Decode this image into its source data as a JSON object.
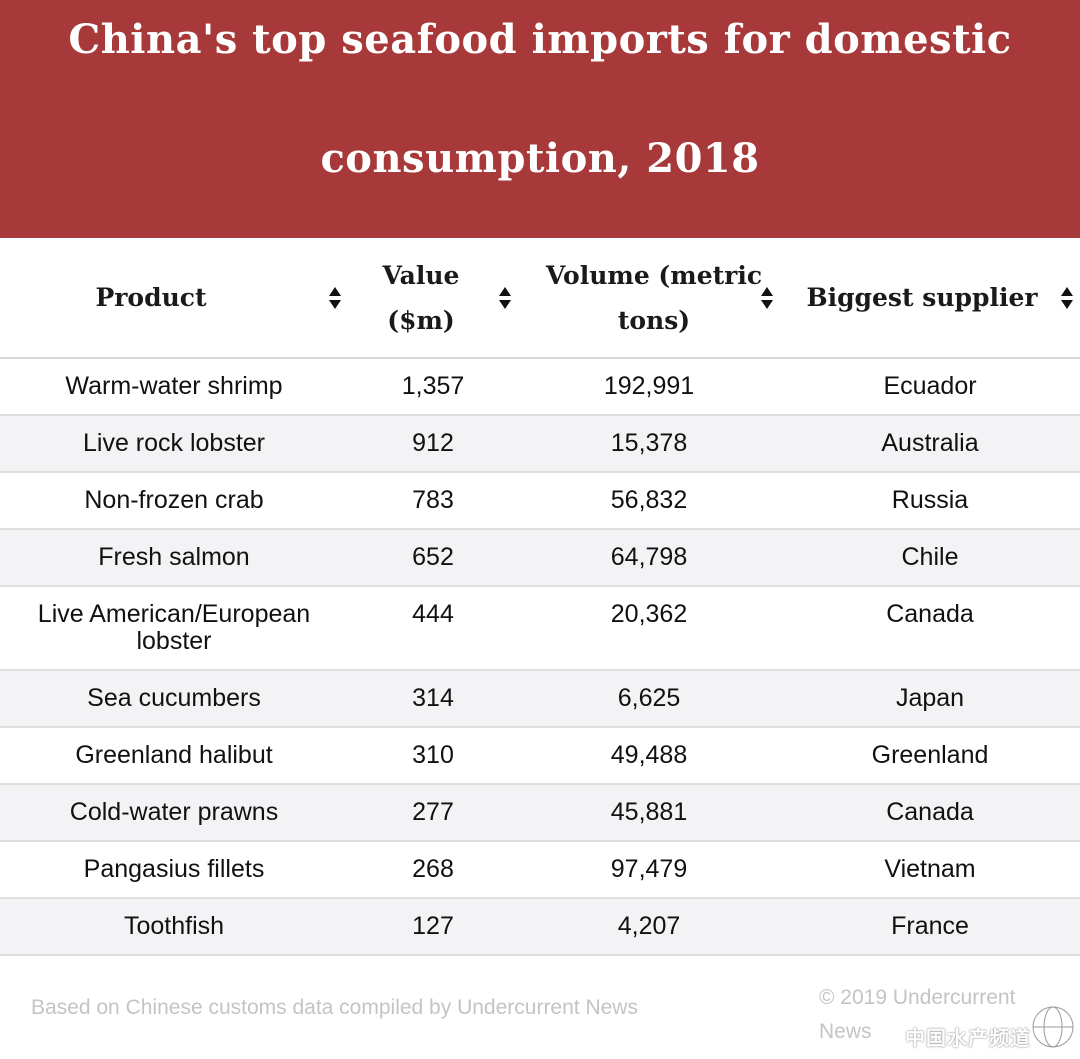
{
  "title_line_1": "China's top seafood imports for domestic",
  "title_line_2": "consumption, 2018",
  "colors": {
    "banner": "#a8393a",
    "row_stripe": "#f3f3f6",
    "footer_text": "#c4c4c4"
  },
  "chart_data": {
    "type": "table",
    "title": "China's top seafood imports for domestic consumption, 2018",
    "columns": [
      "Product",
      "Value ($m)",
      "Volume (metric tons)",
      "Biggest supplier"
    ],
    "rows": [
      [
        "Warm-water shrimp",
        "1,357",
        "192,991",
        "Ecuador"
      ],
      [
        "Live rock lobster",
        "912",
        "15,378",
        "Australia"
      ],
      [
        "Non-frozen crab",
        "783",
        "56,832",
        "Russia"
      ],
      [
        "Fresh salmon",
        "652",
        "64,798",
        "Chile"
      ],
      [
        "Live American/European lobster",
        "444",
        "20,362",
        "Canada"
      ],
      [
        "Sea cucumbers",
        "314",
        "6,625",
        "Japan"
      ],
      [
        "Greenland halibut",
        "310",
        "49,488",
        "Greenland"
      ],
      [
        "Cold-water prawns",
        "277",
        "45,881",
        "Canada"
      ],
      [
        "Pangasius fillets",
        "268",
        "97,479",
        "Vietnam"
      ],
      [
        "Toothfish",
        "127",
        "4,207",
        "France"
      ]
    ]
  },
  "table": {
    "headers": {
      "product": "Product",
      "value_l1": "Value",
      "value_l2": "($m)",
      "volume_l1": "Volume (metric",
      "volume_l2": "tons)",
      "supplier": "Biggest supplier"
    },
    "sort_icon": "sort-icon"
  },
  "footer": {
    "source": "Based on Chinese customs data compiled by Undercurrent News",
    "copyright_l1": "© 2019 Undercurrent",
    "copyright_l2": "News"
  },
  "watermark": {
    "text": "中国水产频道",
    "icon": "globe-logo-icon"
  }
}
